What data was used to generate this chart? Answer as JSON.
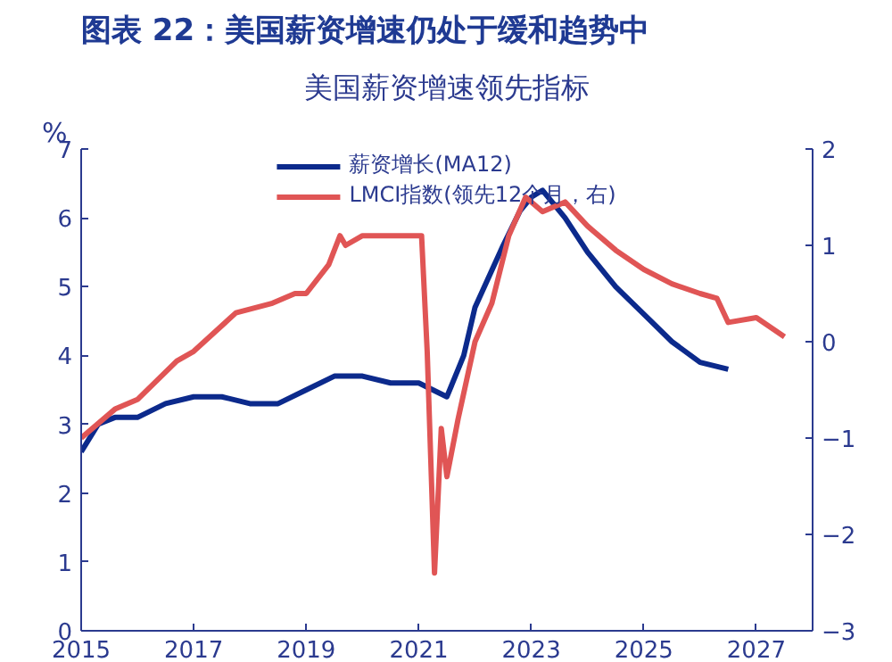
{
  "chart_data": {
    "type": "line",
    "title": "图表 22：美国薪资增速仍处于缓和趋势中",
    "subtitle": "美国薪资增速领先指标",
    "ylabel": "%",
    "xlim": [
      2015,
      2028
    ],
    "xticks": [
      2015,
      2017,
      2019,
      2021,
      2023,
      2025,
      2027
    ],
    "ylim": [
      0,
      7
    ],
    "yticks": [
      0,
      1,
      2,
      3,
      4,
      5,
      6,
      7
    ],
    "y2lim": [
      -3,
      2
    ],
    "y2ticks": [
      -3,
      -2,
      -1,
      0,
      1,
      2
    ],
    "grid": false,
    "legend": "top",
    "marker": "none",
    "line_style": "solid",
    "series": [
      {
        "name": "薪资增长(MA12)",
        "color": "#0c2a8c",
        "x": [
          2015.0,
          2015.3,
          2015.6,
          2016.0,
          2016.5,
          2017.0,
          2017.5,
          2018.0,
          2018.5,
          2019.0,
          2019.5,
          2020.0,
          2020.5,
          2021.0,
          2021.5,
          2021.8,
          2022.0,
          2022.5,
          2022.8,
          2023.0,
          2023.2,
          2023.6,
          2024.0,
          2024.5,
          2025.0,
          2025.5,
          2026.0,
          2026.5
        ],
        "values": [
          2.6,
          3.0,
          3.1,
          3.1,
          3.3,
          3.4,
          3.4,
          3.3,
          3.3,
          3.5,
          3.7,
          3.7,
          3.6,
          3.6,
          3.4,
          4.0,
          4.7,
          5.6,
          6.1,
          6.3,
          6.4,
          6.0,
          5.5,
          5.0,
          4.6,
          4.2,
          3.9,
          3.8
        ]
      },
      {
        "name": "LMCI指数(领先12个月，右)",
        "color": "#e05555",
        "axis": "y2",
        "x": [
          2015.0,
          2015.6,
          2016.0,
          2016.7,
          2017.0,
          2017.75,
          2018.4,
          2018.8,
          2019.0,
          2019.4,
          2019.6,
          2019.7,
          2020.0,
          2020.6,
          2021.05,
          2021.15,
          2021.28,
          2021.4,
          2021.5,
          2021.7,
          2022.0,
          2022.3,
          2022.6,
          2022.9,
          2023.2,
          2023.6,
          2024.0,
          2024.5,
          2025.0,
          2025.5,
          2026.0,
          2026.3,
          2026.5,
          2027.0,
          2027.5
        ],
        "values": [
          -1.0,
          -0.7,
          -0.6,
          -0.2,
          -0.1,
          0.3,
          0.4,
          0.5,
          0.5,
          0.8,
          1.1,
          1.0,
          1.1,
          1.1,
          1.1,
          -0.1,
          -2.4,
          -0.9,
          -1.4,
          -0.8,
          0.0,
          0.4,
          1.1,
          1.5,
          1.35,
          1.45,
          1.2,
          0.95,
          0.75,
          0.6,
          0.5,
          0.45,
          0.2,
          0.25,
          0.05
        ]
      }
    ]
  }
}
